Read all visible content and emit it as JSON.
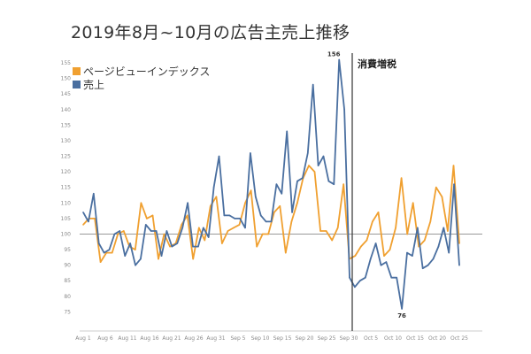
{
  "title": "2019年8月~10月の広告主売上推移",
  "chart_data": {
    "type": "line",
    "title": "2019年8月~10月の広告主売上推移",
    "xlabel": "",
    "ylabel": "",
    "ylim": [
      70,
      157
    ],
    "y_ticks": [
      75,
      80,
      85,
      90,
      95,
      100,
      105,
      110,
      115,
      120,
      125,
      130,
      135,
      140,
      145,
      150,
      155
    ],
    "x_tick_labels": [
      "Aug 1",
      "Aug 6",
      "Aug 11",
      "Aug 16",
      "Aug 21",
      "Aug 26",
      "Aug 31",
      "Sep 5",
      "Sep 10",
      "Sep 15",
      "Sep 20",
      "Sep 25",
      "Sep 30",
      "Oct 5",
      "Oct 10",
      "Oct 15",
      "Oct 20",
      "Oct 25"
    ],
    "reference_line": 100,
    "grid": false,
    "legend_position": "top-left",
    "series": [
      {
        "name": "ページビューインデックス",
        "color": "#f0a030",
        "values": [
          103,
          105,
          105,
          91,
          94,
          94,
          100,
          101,
          96,
          95,
          110,
          105,
          106,
          92,
          100,
          96,
          97,
          103,
          106,
          92,
          102,
          98,
          109,
          112,
          97,
          101,
          102,
          103,
          110,
          114,
          96,
          100,
          100,
          107,
          109,
          94,
          104,
          110,
          118,
          122,
          120,
          101,
          101,
          98,
          102,
          116,
          92,
          93,
          96,
          98,
          104,
          107,
          93,
          95,
          102,
          118,
          100,
          110,
          96,
          98,
          104,
          115,
          112,
          101,
          122,
          97
        ]
      },
      {
        "name": "売上",
        "color": "#4a6fa0",
        "values": [
          107,
          104,
          113,
          97,
          94,
          95,
          100,
          101,
          93,
          97,
          90,
          92,
          103,
          101,
          101,
          93,
          101,
          96,
          97,
          102,
          110,
          96,
          96,
          102,
          99,
          115,
          125,
          106,
          106,
          105,
          105,
          102,
          126,
          112,
          106,
          104,
          104,
          116,
          113,
          133,
          107,
          117,
          118,
          126,
          148,
          122,
          125,
          117,
          116,
          156,
          140,
          86,
          83,
          85,
          86,
          92,
          97,
          90,
          91,
          86,
          86,
          76,
          94,
          93,
          102,
          89,
          90,
          92,
          96,
          102,
          94,
          116,
          90
        ]
      }
    ],
    "annotations": [
      {
        "text": "156",
        "series": "売上",
        "index": 49
      },
      {
        "text": "76",
        "series": "売上",
        "index": 61
      }
    ],
    "event": {
      "label": "消費増税",
      "date": "Sep 30"
    }
  }
}
